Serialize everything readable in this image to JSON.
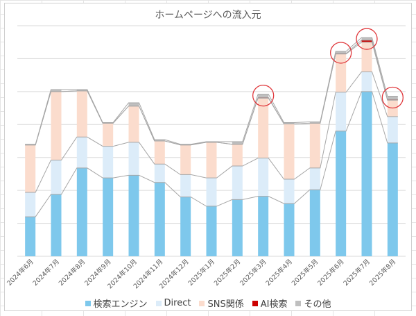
{
  "chart_data": {
    "type": "bar",
    "stacked": true,
    "title": "ホームページへの流入元",
    "xlabel": "",
    "ylabel": "",
    "ylim": [
      0,
      350
    ],
    "grid": true,
    "legend_position": "bottom",
    "categories": [
      "2024年6月",
      "2024年7月",
      "2024年8月",
      "2024年9月",
      "2024年10月",
      "2024年11月",
      "2024年12月",
      "2025年1月",
      "2025年2月",
      "2025年3月",
      "2025年4月",
      "2025年5月",
      "2025年6月",
      "2025年7月",
      "2025年8月"
    ],
    "series": [
      {
        "name": "検索エンジン",
        "color": "#7ec8ec",
        "values": [
          60,
          94,
          134,
          119,
          123,
          112,
          90,
          76,
          86,
          91,
          80,
          101,
          190,
          250,
          172
        ]
      },
      {
        "name": "Direct",
        "color": "#dcecf9",
        "values": [
          37,
          52,
          47,
          48,
          50,
          28,
          34,
          43,
          51,
          58,
          37,
          33,
          59,
          30,
          40
        ]
      },
      {
        "name": "SNS関係",
        "color": "#fbdccd",
        "values": [
          72,
          104,
          70,
          35,
          55,
          35,
          45,
          54,
          33,
          91,
          84,
          68,
          58,
          45,
          25
        ]
      },
      {
        "name": "AI検索",
        "color": "#cc0000",
        "values": [
          0,
          0,
          0,
          0,
          0,
          0,
          0,
          0,
          0,
          1,
          0,
          0,
          1,
          3,
          1
        ]
      },
      {
        "name": "その他",
        "color": "#bfbfbf",
        "values": [
          1,
          3,
          2,
          1,
          5,
          2,
          1,
          1,
          4,
          5,
          2,
          2,
          3,
          4,
          5
        ]
      }
    ],
    "highlighted_categories": [
      "2025年3月",
      "2025年6月",
      "2025年7月",
      "2025年8月"
    ],
    "highlight_color": "#e0383c"
  }
}
